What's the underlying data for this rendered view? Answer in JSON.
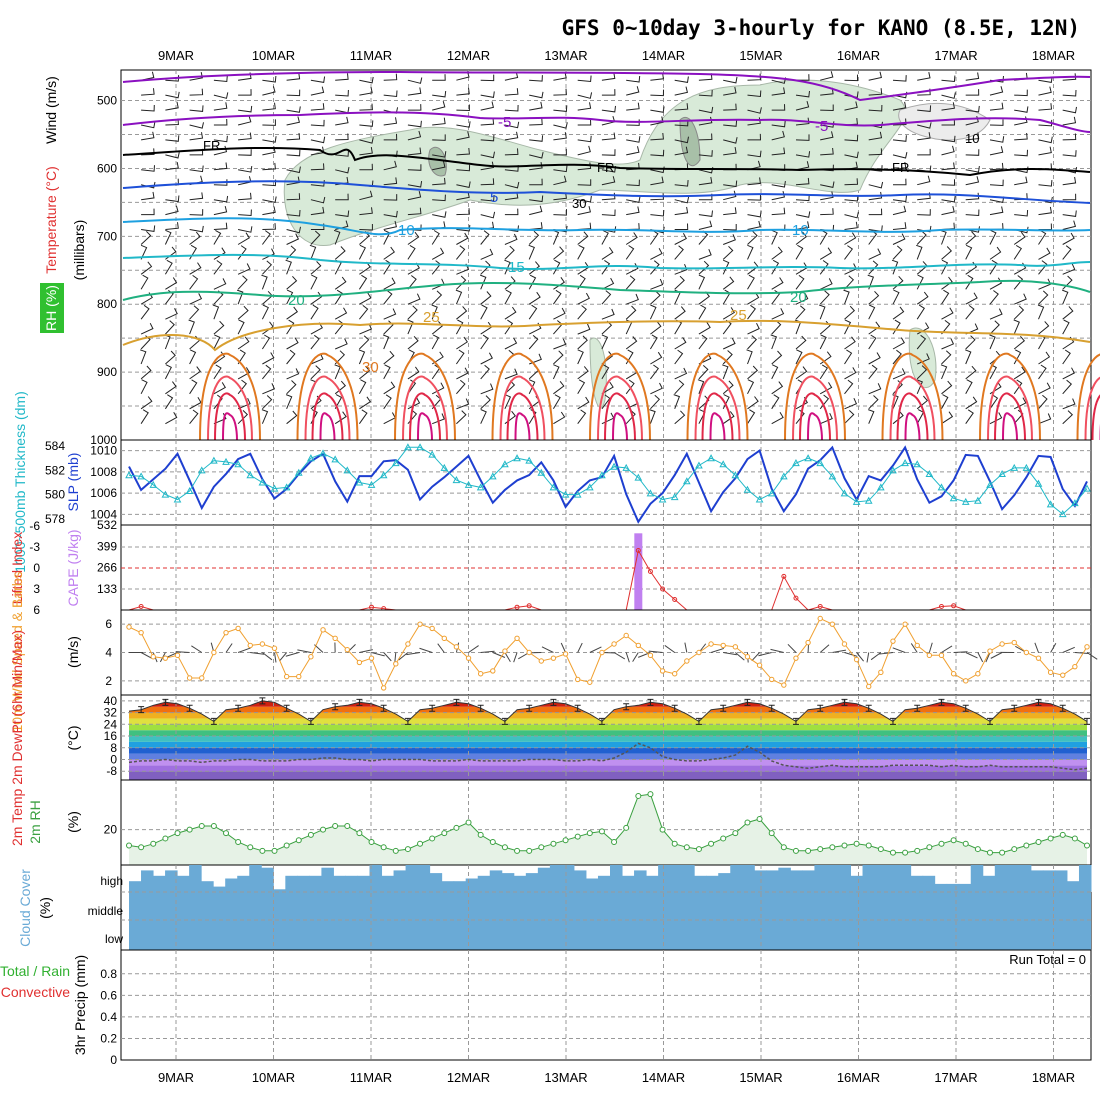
{
  "title": "GFS 0~10day 3-hourly for KANO (8.5E, 12N)",
  "dates": [
    "9MAR",
    "10MAR",
    "11MAR",
    "12MAR",
    "13MAR",
    "14MAR",
    "15MAR",
    "16MAR",
    "17MAR",
    "18MAR"
  ],
  "colors": {
    "slp": "#1e3fd0",
    "thickness": "#20b8c8",
    "lifted": "#e03030",
    "cape": "#c080f0",
    "wind10": "#f0a030",
    "rh": "#3aa040",
    "cloud": "#6aaad6",
    "rain": "#30b030",
    "convective": "#e03030",
    "purple": "#8a10c0",
    "fr": "#000000"
  },
  "panels": {
    "upper": {
      "axis_label": "(millibars)",
      "labels": {
        "wind": "Wind (m/s)",
        "temp": "Temperature (°C)",
        "rh": "RH (%)"
      },
      "yticks": [
        "500",
        "600",
        "700",
        "800",
        "900",
        "1000"
      ],
      "contour_labels": {
        "m5": "-5",
        "fr": "FR",
        "p5": "5",
        "p10": "10",
        "p15": "15",
        "p20": "20",
        "p25": "25",
        "p30": "30",
        "rh30": "30",
        "rh10": "10"
      }
    },
    "slp": {
      "label_thick": "1000~500mb Thickness (dm)",
      "label_slp": "SLP (mb)",
      "yticks_thick": [
        "584",
        "582",
        "580",
        "578"
      ],
      "yticks_slp": [
        "1010",
        "1008",
        "1006",
        "1004"
      ]
    },
    "cape": {
      "label_li": "Lifted Index",
      "label_cape": "CAPE (J/kg)",
      "yticks_li": [
        "-6",
        "-3",
        "0",
        "3",
        "6"
      ],
      "yticks_cape": [
        "532",
        "399",
        "266",
        "133"
      ]
    },
    "wind10": {
      "label": "10m Wind Speed & Barbs",
      "unit": "(m/s)",
      "yticks": [
        "6",
        "4",
        "2"
      ]
    },
    "temp2m": {
      "label": "2m Temp 2m DewPt (6hr Min/Max)",
      "unit": "(°C)",
      "yticks": [
        "40",
        "32",
        "24",
        "16",
        "8",
        "0",
        "-8"
      ]
    },
    "rh2m": {
      "label": "2m RH",
      "unit": "(%)",
      "yticks": [
        "20"
      ]
    },
    "cloud": {
      "label": "Cloud Cover",
      "unit": "(%)",
      "levels": [
        "high",
        "middle",
        "low"
      ]
    },
    "precip": {
      "label": "3hr Precip (mm)",
      "legend_total": "Total / Rain",
      "legend_conv": "Convective",
      "run_total": "Run Total = 0",
      "yticks": [
        "0.8",
        "0.6",
        "0.4",
        "0.2",
        "0"
      ]
    }
  },
  "chart_data": [
    {
      "type": "line",
      "title": "1000~500mb Thickness (dm) and SLP (mb)",
      "series": [
        {
          "name": "SLP (mb)",
          "values": [
            1008.5,
            1006.3,
            1007.3,
            1008.3,
            1009.7,
            1007.2,
            1004.6,
            1006.6,
            1007.8,
            1009.2,
            1009.7,
            1007.3,
            1005.5,
            1006.4,
            1007.8,
            1009.0,
            1009.7,
            1007.1,
            1005.2,
            1007.6,
            1007.6,
            1009.0,
            1009.1,
            1008.2,
            1005.4,
            1006.6,
            1007.5,
            1008.5,
            1009.5,
            1007.2,
            1005.1,
            1006.3,
            1007.2,
            1007.7,
            1008.9,
            1007.2,
            1004.7,
            1006.2,
            1007.2,
            1007.5,
            1009.5,
            1005.9,
            1003.3,
            1005.0,
            1006.0,
            1007.7,
            1009.7,
            1007.0,
            1004.3,
            1006.1,
            1007.4,
            1009.2,
            1010.0,
            1006.4,
            1004.3,
            1005.9,
            1008.3,
            1009.1,
            1010.3,
            1007.4,
            1005.4,
            1007.6,
            1007.2,
            1008.6,
            1010.3,
            1007.3,
            1005.1,
            1005.7,
            1007.2,
            1009.6,
            1009.5,
            1007.1,
            1004.5,
            1005.8,
            1007.5,
            1009.5,
            1009.4,
            1006.4,
            1004.8,
            1007.1
          ]
        },
        {
          "name": "1000~500mb Thickness (dm)",
          "values": [
            581.6,
            581.5,
            580.8,
            580.0,
            579.6,
            580.3,
            582.0,
            582.8,
            582.7,
            582.5,
            581.6,
            581.0,
            580.5,
            580.6,
            581.8,
            583.0,
            583.4,
            582.9,
            582.0,
            581.0,
            580.8,
            581.6,
            582.6,
            583.9,
            583.9,
            583.3,
            582.2,
            581.2,
            580.8,
            580.6,
            581.5,
            582.5,
            583.0,
            582.8,
            581.8,
            580.6,
            580.0,
            580.0,
            580.6,
            581.6,
            582.3,
            582.2,
            581.4,
            580.1,
            579.6,
            579.8,
            581.1,
            582.4,
            583.0,
            582.5,
            581.6,
            580.4,
            579.6,
            580.1,
            581.5,
            582.6,
            583.0,
            582.6,
            581.5,
            580.1,
            579.4,
            579.5,
            580.6,
            582.0,
            582.6,
            582.5,
            581.7,
            580.6,
            579.7,
            579.4,
            579.5,
            580.8,
            581.7,
            582.2,
            582.2,
            580.9,
            579.2,
            578.4,
            579.3,
            580.5
          ]
        }
      ],
      "ylim_slp": [
        1003,
        1011
      ],
      "ylim_thick": [
        577.5,
        584.5
      ]
    },
    {
      "type": "line",
      "title": "Lifted Index / CAPE (J/kg)",
      "series": [
        {
          "name": "CAPE (J/kg)",
          "values": [
            0,
            0,
            0,
            0,
            0,
            0,
            0,
            0,
            0,
            0,
            0,
            0,
            0,
            0,
            0,
            0,
            0,
            0,
            0,
            0,
            0,
            0,
            0,
            0,
            0,
            0,
            0,
            0,
            0,
            0,
            0,
            0,
            0,
            0,
            0,
            0,
            0,
            0,
            0,
            0,
            0,
            0,
            480,
            0,
            0,
            0,
            0,
            0,
            0,
            0,
            0,
            0,
            0,
            0,
            0,
            0,
            0,
            0,
            0,
            0,
            0,
            0,
            0,
            0,
            0,
            0,
            0,
            0,
            0,
            0,
            0,
            0,
            0,
            0,
            0,
            0,
            0,
            0,
            0,
            0
          ]
        },
        {
          "name": "Lifted Index",
          "values": [
            6,
            5.5,
            6,
            6,
            6,
            6,
            6,
            6,
            6,
            6,
            6,
            6,
            6,
            6,
            6,
            6,
            6,
            6,
            6,
            6,
            5.6,
            5.8,
            6,
            6,
            6,
            6,
            6,
            6,
            6,
            6,
            6,
            6,
            5.6,
            5.4,
            6,
            6,
            6,
            6,
            6,
            6,
            6,
            6,
            -2.5,
            0.5,
            3.0,
            4.5,
            6,
            6,
            6,
            6,
            6,
            6,
            6,
            6,
            1.2,
            4.3,
            6,
            5.5,
            6,
            6,
            6,
            6,
            6,
            6,
            6,
            6,
            6,
            5.5,
            5.4,
            6,
            6,
            6,
            6,
            6,
            6,
            6,
            6,
            6,
            6,
            6
          ]
        }
      ],
      "ylim_li": [
        6,
        -6
      ],
      "ylim_cape": [
        0,
        532
      ]
    },
    {
      "type": "line",
      "title": "10m Wind Speed (m/s)",
      "series": [
        {
          "name": "10m Wind Speed",
          "values": [
            5.8,
            5.4,
            3.7,
            3.6,
            3.8,
            2.2,
            2.2,
            4.0,
            5.4,
            5.7,
            4.5,
            4.6,
            4.3,
            2.3,
            2.3,
            3.7,
            5.6,
            5.0,
            4.2,
            3.3,
            3.6,
            1.5,
            3.2,
            4.6,
            6.0,
            5.7,
            5.0,
            4.4,
            3.6,
            2.5,
            2.7,
            4.1,
            5.0,
            4.0,
            3.4,
            3.6,
            3.9,
            2.1,
            1.9,
            4.0,
            4.6,
            5.2,
            4.5,
            3.8,
            2.7,
            2.5,
            3.4,
            4.0,
            4.6,
            4.5,
            4.4,
            3.7,
            3.1,
            2.1,
            1.7,
            3.6,
            4.7,
            6.4,
            6.0,
            4.6,
            3.5,
            1.6,
            2.6,
            4.8,
            6.0,
            4.5,
            3.8,
            3.8,
            2.5,
            2.0,
            2.5,
            4.1,
            4.6,
            4.7,
            4.0,
            3.6,
            2.6,
            2.4,
            3.0,
            4.4
          ]
        }
      ],
      "ylim": [
        1,
        7
      ]
    },
    {
      "type": "area",
      "title": "2m Temp and 2m DewPt (°C)",
      "series": [
        {
          "name": "2m Temp",
          "values": [
            33,
            34,
            37,
            39,
            38,
            35,
            31,
            26,
            34,
            35,
            37,
            40,
            39,
            35,
            31,
            26,
            34,
            36,
            37,
            39,
            38,
            35,
            31,
            26,
            34,
            35,
            37,
            39,
            38,
            35,
            31,
            26,
            34,
            35,
            37,
            39,
            38,
            35,
            31,
            26,
            34,
            36,
            37,
            39,
            38,
            35,
            31,
            26,
            34,
            35,
            37,
            39,
            38,
            35,
            31,
            26,
            34,
            35,
            37,
            39,
            38,
            35,
            31,
            26,
            34,
            35,
            37,
            39,
            38,
            35,
            31,
            26,
            34,
            35,
            37,
            39,
            38,
            35,
            31,
            26
          ]
        },
        {
          "name": "2m DewPt",
          "values": [
            -2,
            -1,
            -1,
            0,
            -1,
            -1,
            -2,
            -1,
            -1,
            0,
            0,
            -1,
            -1,
            -1,
            0,
            0,
            1,
            1,
            0,
            0,
            -1,
            0,
            0,
            0,
            0,
            -1,
            -1,
            -1,
            0,
            -1,
            -1,
            -1,
            -1,
            0,
            0,
            0,
            -1,
            -1,
            0,
            -1,
            1,
            5,
            11,
            8,
            2,
            0,
            -1,
            -1,
            0,
            1,
            3,
            9,
            5,
            -1,
            -4,
            -5,
            -6,
            -5,
            -4,
            -5,
            -5,
            -5,
            -5,
            -4,
            -4,
            -4,
            -4,
            -5,
            -4,
            -5,
            -5,
            -4,
            -5,
            -5,
            -5,
            -5,
            -5,
            -6,
            -7,
            -6
          ]
        }
      ],
      "ylim": [
        -14,
        44
      ]
    },
    {
      "type": "area",
      "title": "2m RH (%)",
      "series": [
        {
          "name": "2m RH",
          "values": [
            11,
            10,
            12,
            15,
            18,
            20,
            22,
            22,
            18,
            13,
            10,
            8,
            8,
            11,
            14,
            17,
            20,
            22,
            22,
            18,
            13,
            10,
            8,
            9,
            12,
            15,
            18,
            21,
            24,
            17,
            13,
            10,
            8,
            8,
            10,
            12,
            14,
            16,
            18,
            19,
            13,
            21,
            39,
            40,
            20,
            12,
            10,
            9,
            12,
            15,
            18,
            24,
            26,
            18,
            10,
            8,
            8,
            9,
            10,
            11,
            12,
            11,
            9,
            7,
            7,
            8,
            10,
            12,
            14,
            12,
            9,
            7,
            7,
            9,
            11,
            13,
            15,
            17,
            15,
            11
          ]
        }
      ],
      "ylim": [
        0,
        48
      ]
    },
    {
      "type": "bar",
      "title": "Cloud Cover (%) high",
      "series": [
        {
          "name": "high cloud",
          "values": [
            40,
            80,
            60,
            80,
            60,
            100,
            40,
            20,
            50,
            60,
            100,
            90,
            10,
            60,
            60,
            60,
            90,
            60,
            60,
            60,
            100,
            60,
            80,
            100,
            100,
            70,
            40,
            40,
            50,
            60,
            80,
            70,
            60,
            70,
            90,
            100,
            100,
            80,
            50,
            60,
            100,
            60,
            80,
            60,
            100,
            100,
            100,
            60,
            60,
            70,
            100,
            100,
            80,
            80,
            90,
            80,
            80,
            100,
            100,
            100,
            60,
            100,
            100,
            100,
            100,
            60,
            60,
            30,
            30,
            30,
            100,
            60,
            100,
            100,
            100,
            80,
            80,
            80,
            40,
            100
          ]
        }
      ],
      "ylim": [
        0,
        100
      ]
    },
    {
      "type": "bar",
      "title": "3hr Precip (mm)",
      "series": [
        {
          "name": "Total / Rain",
          "values": []
        },
        {
          "name": "Convective",
          "values": []
        }
      ],
      "ylim": [
        0,
        1
      ]
    }
  ]
}
